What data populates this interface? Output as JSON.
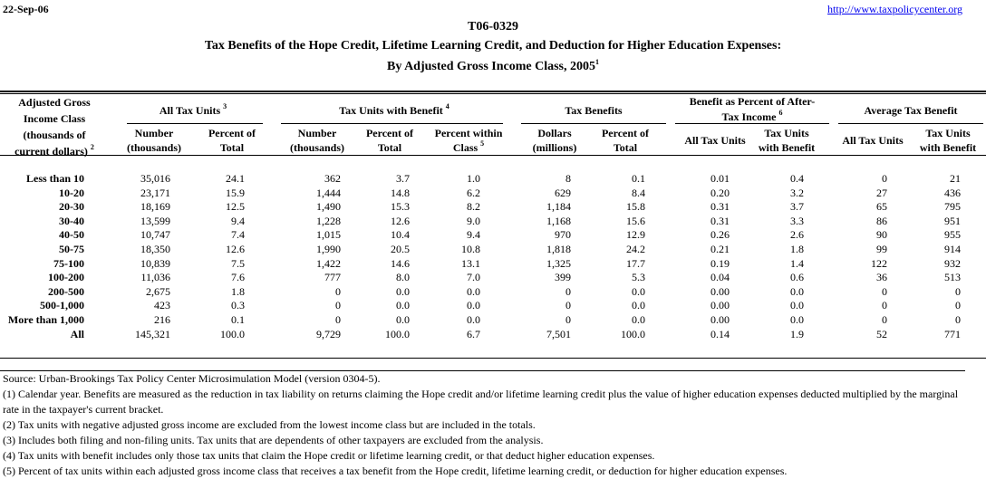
{
  "header": {
    "date": "22-Sep-06",
    "url": "http://www.taxpolicycenter.org",
    "id": "T06-0329",
    "title_line1": "Tax Benefits of the Hope Credit, Lifetime Learning Credit, and Deduction for Higher Education Expenses:",
    "title_line2": "By Adjusted Gross Income Class, 2005",
    "title_note": "1"
  },
  "table": {
    "row_header": {
      "lines": [
        "Adjusted Gross",
        "Income Class",
        "(thousands of",
        "current dollars)"
      ],
      "note": "2"
    },
    "column_groups": [
      {
        "lines": [
          "All Tax Units"
        ],
        "note": "3"
      },
      {
        "lines": [
          "Tax Units with Benefit"
        ],
        "note": "4"
      },
      {
        "lines": [
          "Tax Benefits"
        ]
      },
      {
        "lines": [
          "Benefit as Percent of After-",
          "Tax Income"
        ],
        "note": "6"
      },
      {
        "lines": [
          "Average Tax Benefit"
        ]
      }
    ],
    "columns": [
      {
        "lines": [
          "Number",
          "(thousands)"
        ]
      },
      {
        "lines": [
          "Percent of",
          "Total"
        ]
      },
      {
        "lines": [
          "Number",
          "(thousands)"
        ]
      },
      {
        "lines": [
          "Percent of",
          "Total"
        ]
      },
      {
        "lines": [
          "Percent within",
          "Class"
        ],
        "note": "5"
      },
      {
        "lines": [
          "Dollars",
          "(millions)"
        ]
      },
      {
        "lines": [
          "Percent of",
          "Total"
        ]
      },
      {
        "lines": [
          "All Tax Units"
        ]
      },
      {
        "lines": [
          "Tax Units",
          "with Benefit"
        ]
      },
      {
        "lines": [
          "All Tax Units"
        ]
      },
      {
        "lines": [
          "Tax Units",
          "with Benefit"
        ]
      }
    ],
    "rows": [
      [
        "Less than 10",
        "35,016",
        "24.1",
        "362",
        "3.7",
        "1.0",
        "8",
        "0.1",
        "0.01",
        "0.4",
        "0",
        "21"
      ],
      [
        "10-20",
        "23,171",
        "15.9",
        "1,444",
        "14.8",
        "6.2",
        "629",
        "8.4",
        "0.20",
        "3.2",
        "27",
        "436"
      ],
      [
        "20-30",
        "18,169",
        "12.5",
        "1,490",
        "15.3",
        "8.2",
        "1,184",
        "15.8",
        "0.31",
        "3.7",
        "65",
        "795"
      ],
      [
        "30-40",
        "13,599",
        "9.4",
        "1,228",
        "12.6",
        "9.0",
        "1,168",
        "15.6",
        "0.31",
        "3.3",
        "86",
        "951"
      ],
      [
        "40-50",
        "10,747",
        "7.4",
        "1,015",
        "10.4",
        "9.4",
        "970",
        "12.9",
        "0.26",
        "2.6",
        "90",
        "955"
      ],
      [
        "50-75",
        "18,350",
        "12.6",
        "1,990",
        "20.5",
        "10.8",
        "1,818",
        "24.2",
        "0.21",
        "1.8",
        "99",
        "914"
      ],
      [
        "75-100",
        "10,839",
        "7.5",
        "1,422",
        "14.6",
        "13.1",
        "1,325",
        "17.7",
        "0.19",
        "1.4",
        "122",
        "932"
      ],
      [
        "100-200",
        "11,036",
        "7.6",
        "777",
        "8.0",
        "7.0",
        "399",
        "5.3",
        "0.04",
        "0.6",
        "36",
        "513"
      ],
      [
        "200-500",
        "2,675",
        "1.8",
        "0",
        "0.0",
        "0.0",
        "0",
        "0.0",
        "0.00",
        "0.0",
        "0",
        "0"
      ],
      [
        "500-1,000",
        "423",
        "0.3",
        "0",
        "0.0",
        "0.0",
        "0",
        "0.0",
        "0.00",
        "0.0",
        "0",
        "0"
      ],
      [
        "More than 1,000",
        "216",
        "0.1",
        "0",
        "0.0",
        "0.0",
        "0",
        "0.0",
        "0.00",
        "0.0",
        "0",
        "0"
      ],
      [
        "All",
        "145,321",
        "100.0",
        "9,729",
        "100.0",
        "6.7",
        "7,501",
        "100.0",
        "0.14",
        "1.9",
        "52",
        "771"
      ]
    ]
  },
  "notes": [
    "Source: Urban-Brookings Tax Policy Center Microsimulation Model (version 0304-5).",
    "(1) Calendar year. Benefits are measured as the reduction in tax liability on returns claiming the Hope credit and/or lifetime learning credit plus the value of higher education expenses deducted multiplied by the marginal rate in the taxpayer's current bracket.",
    "(2) Tax units with negative adjusted gross income are excluded from the lowest income class but are included in the totals.",
    "(3) Includes both filing and non-filing units.  Tax units that are dependents of other taxpayers are excluded from the analysis.",
    "(4) Tax units with benefit includes only those tax units that claim the Hope credit or lifetime learning credit, or that deduct higher education expenses.",
    "(5) Percent of tax units within each adjusted gross income class that receives a tax benefit from the Hope credit, lifetime learning credit, or deduction for higher education expenses."
  ]
}
